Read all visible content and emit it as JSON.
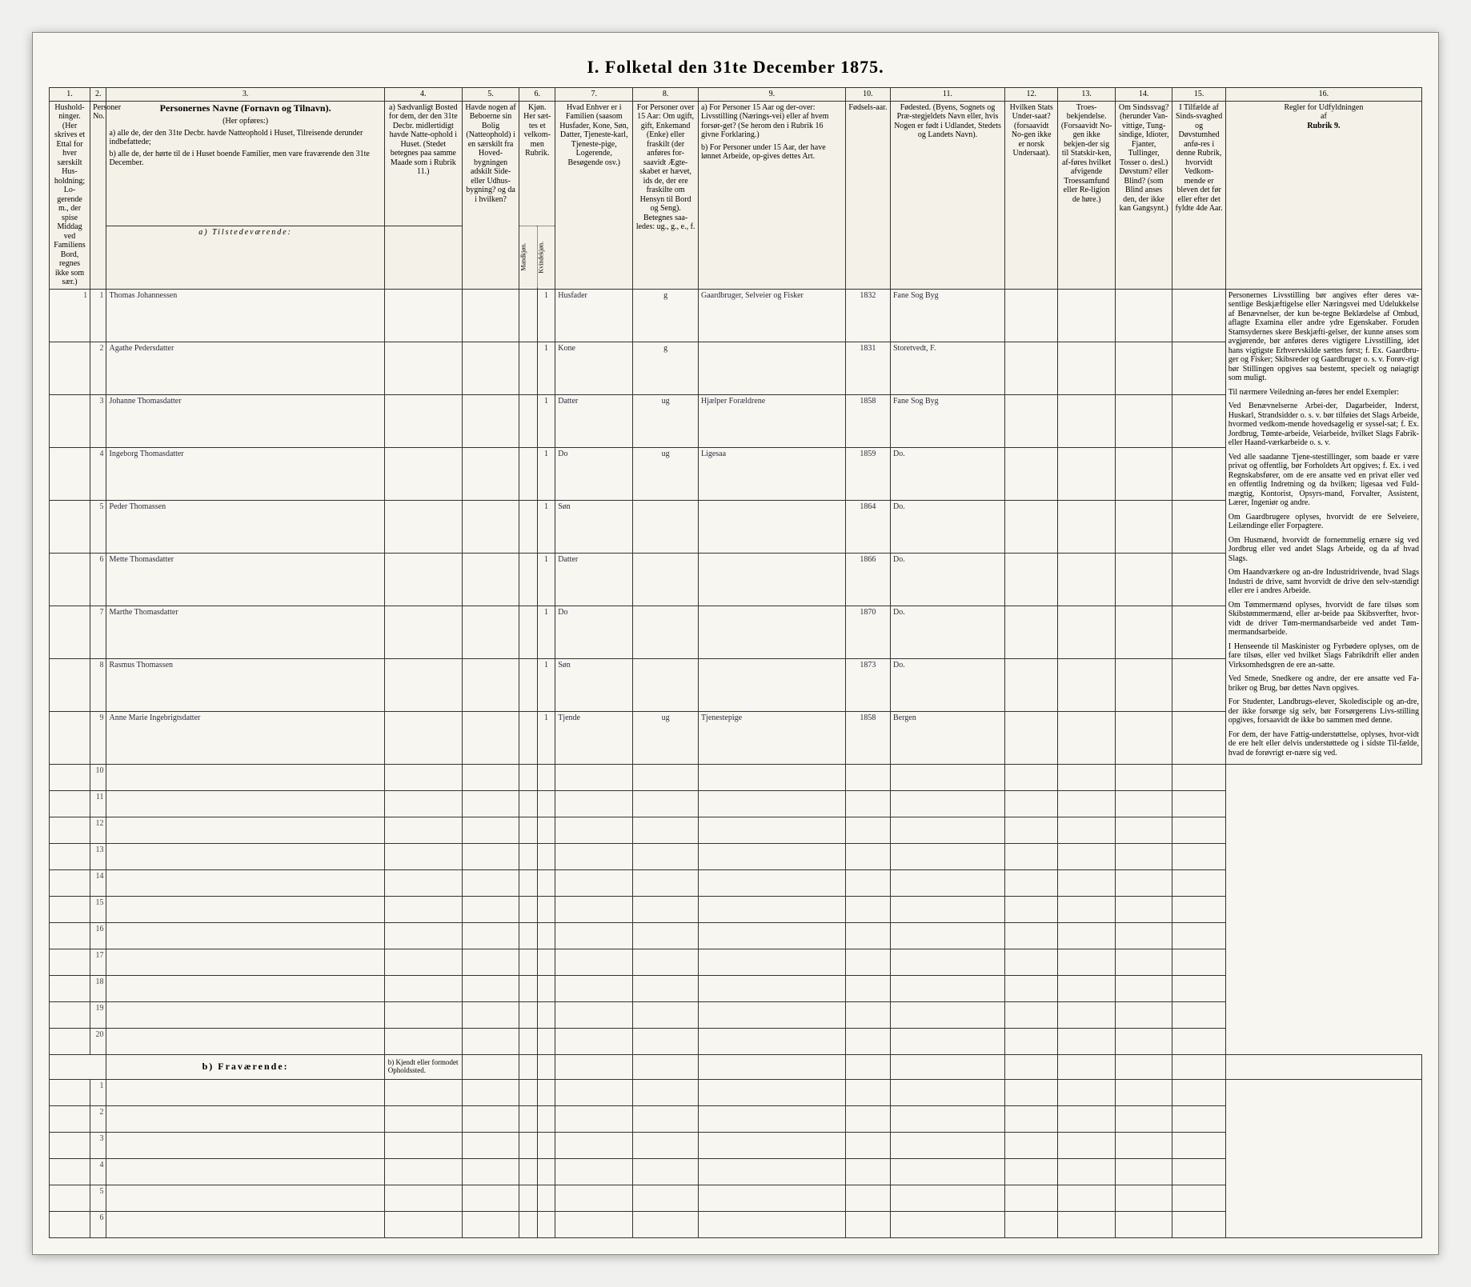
{
  "title": "I. Folketal den 31te December 1875.",
  "colnums": [
    "1.",
    "2.",
    "3.",
    "4.",
    "5.",
    "6.",
    "7.",
    "8.",
    "9.",
    "10.",
    "11.",
    "12.",
    "13.",
    "14.",
    "15.",
    "16."
  ],
  "headers": {
    "c1": "Hushold-ninger. (Her skrives et Ettal for hver særskilt Hus-holdning; Lo-gerende m., der spise Middag ved Familiens Bord, regnes ikke som sær.)",
    "c2": "Personer No.",
    "c3a": "Personernes Navne (Fornavn og Tilnavn).",
    "c3b": "(Her opføres:)",
    "c3c": "a) alle de, der den 31te Decbr. havde Natteophold i Huset, Tilreisende derunder indbefattede;",
    "c3d": "b) alle de, der hørte til de i Huset boende Familier, men vare fraværende den 31te December.",
    "c4a": "a) Sædvanligt Bosted for dem, der den 31te Decbr. midlertidigt havde Natte-ophold i Huset. (Stedet betegnes paa samme Maade som i Rubrik 11.)",
    "c4b": "b) Kjendt eller formodet Opholdssted.",
    "c5": "Havde nogen af Beboerne sin Bolig (Natteophold) i en særskilt fra Hoved-bygningen adskilt Side- eller Udhus-bygning? og da i hvilken?",
    "c6": "Kjøn. Her sæt-tes et velkom-men Rubrik.",
    "c6a": "Mandkjøn.",
    "c6b": "Kvindekjøn.",
    "c7": "Hvad Enhver er i Familien (saasom Husfader, Kone, Søn, Datter, Tjeneste-karl, Tjeneste-pige, Logerende, Besøgende osv.)",
    "c8": "For Personer over 15 Aar: Om ugift, gift, Enkemand (Enke) eller fraskilt (der anføres for-saavidt Ægte-skabet er hævet, ids de, der ere fraskilte om Hensyn til Bord og Seng). Betegnes saa-ledes: ug., g., e., f.",
    "c9a": "a) For Personer 15 Aar og der-over: Livsstilling (Nærings-vei) eller af hvem forsør-get? (Se herom den i Rubrik 16 givne Forklaring.)",
    "c9b": "b) For Personer under 15 Aar, der have lønnet Arbeide, op-gives dettes Art.",
    "c10": "Fødsels-aar.",
    "c11": "Fødested. (Byens, Sognets og Præ-stegjeldets Navn eller, hvis Nogen er født i Udlandet, Stedets og Landets Navn).",
    "c12": "Hvilken Stats Under-saat? (forsaavidt No-gen ikke er norsk Undersaat).",
    "c13": "Troes-bekjendelse. (Forsaavidt No-gen ikke bekjen-der sig til Statskir-ken, af-føres hvilket afvigende Troessamfund eller Re-ligion de høre.)",
    "c14": "Om Sindssvag? (herunder Van-vittige, Tung-sindige, Idioter, Fjanter, Tullinger, Tosser o. desl.) Døvstum? eller Blind? (som Blind anses den, der ikke kan Gangsynt.)",
    "c15": "I Tilfælde af Sinds-svaghed og Døvstumhed anfø-res i denne Rubrik, hvorvidt Vedkom-mende er bleven det før eller efter det fyldte 4de Aar.",
    "c16a": "Regler for Udfyldningen",
    "c16b": "af",
    "c16c": "Rubrik 9."
  },
  "section_a": "a) Tilstedeværende:",
  "section_b": "b) Fraværende:",
  "rows": [
    {
      "n": "1",
      "name": "Thomas Johannessen",
      "c6": "1",
      "rel": "Husfader",
      "civ": "g",
      "occ": "Gaardbruger, Selveier og Fisker",
      "year": "1832",
      "place": "Fane Sog Byg"
    },
    {
      "n": "2",
      "name": "Agathe Pedersdatter",
      "c6": "1",
      "rel": "Kone",
      "civ": "g",
      "occ": "",
      "year": "1831",
      "place": "Storetvedt, F."
    },
    {
      "n": "3",
      "name": "Johanne Thomasdatter",
      "c6": "1",
      "rel": "Datter",
      "civ": "ug",
      "occ": "Hjælper Forældrene",
      "year": "1858",
      "place": "Fane Sog Byg"
    },
    {
      "n": "4",
      "name": "Ingeborg Thomasdatter",
      "c6": "1",
      "rel": "Do",
      "civ": "ug",
      "occ": "Ligesaa",
      "year": "1859",
      "place": "Do."
    },
    {
      "n": "5",
      "name": "Peder Thomassen",
      "c6": "1",
      "rel": "Søn",
      "civ": "",
      "occ": "",
      "year": "1864",
      "place": "Do."
    },
    {
      "n": "6",
      "name": "Mette Thomasdatter",
      "c6": "1",
      "rel": "Datter",
      "civ": "",
      "occ": "",
      "year": "1866",
      "place": "Do."
    },
    {
      "n": "7",
      "name": "Marthe Thomasdatter",
      "c6": "1",
      "rel": "Do",
      "civ": "",
      "occ": "",
      "year": "1870",
      "place": "Do."
    },
    {
      "n": "8",
      "name": "Rasmus Thomassen",
      "c6": "1",
      "rel": "Søn",
      "civ": "",
      "occ": "",
      "year": "1873",
      "place": "Do."
    },
    {
      "n": "9",
      "name": "Anne Marie Ingebrigtsdatter",
      "c6": "1",
      "rel": "Tjende",
      "civ": "ug",
      "occ": "Tjenestepige",
      "year": "1858",
      "place": "Bergen"
    }
  ],
  "blank_a": [
    "10",
    "11",
    "12",
    "13",
    "14",
    "15",
    "16",
    "17",
    "18",
    "19",
    "20"
  ],
  "blank_b": [
    "1",
    "2",
    "3",
    "4",
    "5",
    "6"
  ],
  "instructions": [
    "Personernes Livsstilling bør angives efter deres væ-sentlige Beskjæftigelse eller Næringsvei med Udelukkelse af Benævnelser, der kun be-tegne Beklædelse af Ombud, aflagte Examina eller andre ydre Egenskaber. Foruden Stamsydernes skere Beskjæfti-gelser, der kunne anses som avgjørende, bør anføres deres vigtigere Livsstilling, idet hans vigtigste Erhvervskilde sættes først; f. Ex. Gaardbru-ger og Fisker; Skibsreder og Gaardbruger o. s. v. Forøv-rigt bør Stillingen opgives saa bestemt, specielt og nøiagtigt som muligt.",
    "Til nærmere Veiledning an-føres her endel Exempler:",
    "Ved Benævnelserne Arbei-der, Dagarbeider, Inderst, Huskarl, Strandsidder o. s. v. bør tilføies det Slags Arbeide, hvormed vedkom-mende hovedsagelig er syssel-sat; f. Ex. Jordbrug, Tømte-arbeide, Veiarbeide, hvilket Slags Fabrik- eller Haand-værkarbeide o. s. v.",
    "Ved alle saadanne Tjene-stestillinger, som baade er være privat og offentlig, bør Forholdets Art opgives; f. Ex. i ved Regnskabsfører, om de ere ansatte ved en privat eller ved en offentlig Indretning og da hvilken; ligesaa ved Fuld-mægtig, Kontorist, Opsyrs-mand, Forvalter, Assistent, Lærer, Ingeniør og andre.",
    "Om Gaardbrugere oplyses, hvorvidt de ere Selveiere, Leilændinge eller Forpagtere.",
    "Om Husmænd, hvorvidt de fornemmelig ernære sig ved Jordbrug eller ved andet Slags Arbeide, og da af hvad Slags.",
    "Om Haandværkere og an-dre Industridrivende, hvad Slags Industri de drive, samt hvorvidt de drive den selv-stændigt eller ere i andres Arbeide.",
    "Om Tømmermænd oplyses, hvorvidt de fare tilsøs som Skibstømmermænd, eller ar-beide paa Skibsverfter, hvor-vidt de driver Tøm-mermandsarbeide ved andet Tøm-mermandsarbeide.",
    "I Henseende til Maskinister og Fyrbødere oplyses, om de fare tilsøs, eller ved hvilket Slags Fabrikdrift eller anden Virksomhedsgren de ere an-satte.",
    "Ved Smede, Snedkere og andre, der ere ansatte ved Fa-briker og Brug, bør dettes Navn opgives.",
    "For Studenter, Landbrugs-elever, Skoledisciple og an-dre, der ikke forsørge sig selv, bør Forsørgerens Livs-stilling opgives, forsaavidt de ikke bo sammen med denne.",
    "For dem, der have Fattig-understøttelse, oplyses, hvor-vidt de ere helt eller delvis understøttede og i sidste Til-fælde, hvad de forøvrigt er-nære sig ved."
  ]
}
